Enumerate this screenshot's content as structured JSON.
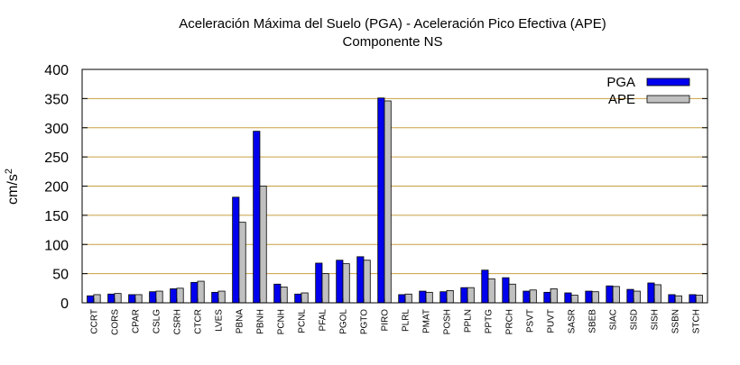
{
  "chart_data": {
    "type": "bar",
    "title": "Aceleración Máxima del Suelo (PGA) -  Aceleración Pico Efectiva (APE)",
    "subtitle": "Componente NS",
    "ylabel": "cm/s",
    "ylabel_sup": "2",
    "xlabel": "",
    "ylim": [
      0,
      400
    ],
    "yticks": [
      "0",
      "50",
      "100",
      "150",
      "200",
      "250",
      "300",
      "350",
      "400"
    ],
    "grid": true,
    "legend_position": "top-right",
    "colors": {
      "PGA": "#0000ee",
      "APE": "#c0c0c0",
      "grid": "#c8a040"
    },
    "categories": [
      "CCRT",
      "CORS",
      "CPAR",
      "CSLG",
      "CSRH",
      "CTCR",
      "LVES",
      "PBNA",
      "PBNH",
      "PCNH",
      "PCNL",
      "PFAL",
      "PGOL",
      "PGTO",
      "PIRO",
      "PLRL",
      "PMAT",
      "POSH",
      "PPLN",
      "PPTG",
      "PRCH",
      "PSVT",
      "PUVT",
      "SASR",
      "SBEB",
      "SIAC",
      "SISD",
      "SISH",
      "SSBN",
      "STCH"
    ],
    "series": [
      {
        "name": "PGA",
        "values": [
          12,
          15,
          14,
          19,
          24,
          35,
          18,
          181,
          294,
          32,
          15,
          68,
          73,
          79,
          351,
          14,
          20,
          19,
          26,
          56,
          43,
          20,
          18,
          17,
          20,
          29,
          23,
          34,
          14,
          14
        ]
      },
      {
        "name": "APE",
        "values": [
          14,
          16,
          14,
          20,
          25,
          37,
          20,
          138,
          200,
          27,
          17,
          50,
          67,
          73,
          346,
          15,
          18,
          21,
          26,
          41,
          32,
          22,
          24,
          13,
          19,
          28,
          20,
          31,
          12,
          13
        ]
      }
    ]
  }
}
